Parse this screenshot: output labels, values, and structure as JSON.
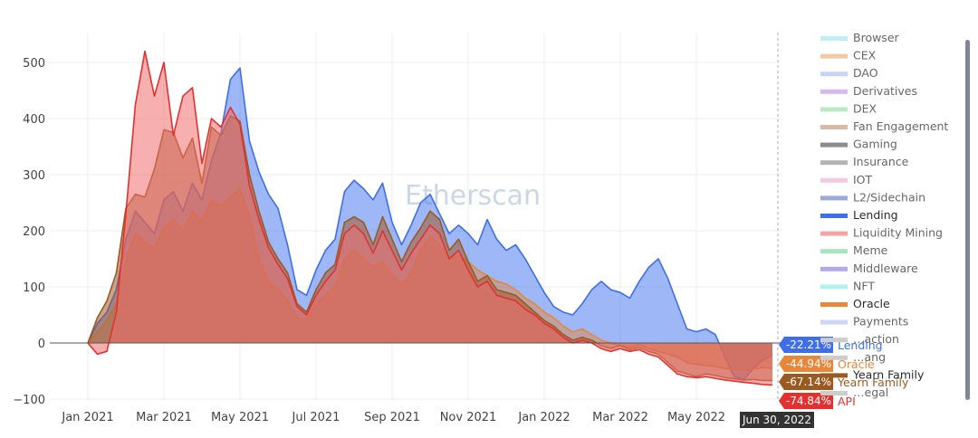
{
  "watermark": "Etherscan",
  "hover_date": "Jun 30, 2022",
  "chart_data": {
    "type": "area",
    "x_ticks": [
      "Jan 2021",
      "Mar 2021",
      "May 2021",
      "Jul 2021",
      "Sep 2021",
      "Nov 2021",
      "Jan 2022",
      "Mar 2022",
      "May 2022"
    ],
    "y_ticks": [
      "500",
      "400",
      "300",
      "200",
      "100",
      "0",
      "−100"
    ],
    "ylim": [
      -100,
      550
    ],
    "xlim_months": [
      0,
      18
    ],
    "grid": true,
    "legend_position": "right",
    "legend": [
      {
        "name": "Browser",
        "color": "#bfeff2",
        "active": false
      },
      {
        "name": "CEX",
        "color": "#f7c8a0",
        "active": false
      },
      {
        "name": "DAO",
        "color": "#c8d4f5",
        "active": false
      },
      {
        "name": "Derivatives",
        "color": "#d8b8f0",
        "active": false
      },
      {
        "name": "DEX",
        "color": "#bde8c4",
        "active": false
      },
      {
        "name": "Fan Engagement",
        "color": "#d9b9a4",
        "active": false
      },
      {
        "name": "Gaming",
        "color": "#8c8c8c",
        "active": false
      },
      {
        "name": "Insurance",
        "color": "#b4b4b4",
        "active": false
      },
      {
        "name": "IOT",
        "color": "#f4c9e0",
        "active": false
      },
      {
        "name": "L2/Sidechain",
        "color": "#9cabd6",
        "active": false
      },
      {
        "name": "Lending",
        "color": "#3f6ee8",
        "active": true
      },
      {
        "name": "Liquidity Mining",
        "color": "#f5a3a3",
        "active": false
      },
      {
        "name": "Meme",
        "color": "#a8e3c0",
        "active": false
      },
      {
        "name": "Middleware",
        "color": "#b3a8e8",
        "active": false
      },
      {
        "name": "NFT",
        "color": "#b3f0ec",
        "active": false
      },
      {
        "name": "Oracle",
        "color": "#e8873a",
        "active": true
      },
      {
        "name": "Payments",
        "color": "#cbd6f8",
        "active": false
      },
      {
        "name": "…action",
        "color": "#cccccc",
        "active": false
      },
      {
        "name": "…ang",
        "color": "#cccccc",
        "active": false
      },
      {
        "name": "Yearn Family",
        "color": "#9a5a22",
        "active": true
      },
      {
        "name": "…egal",
        "color": "#cccccc",
        "active": false
      }
    ],
    "series": [
      {
        "name": "Lending",
        "color": "#3f6ee8",
        "fill": "rgba(76,124,240,0.55)",
        "end_label": "-22.21%",
        "x": [
          0,
          0.25,
          0.5,
          0.75,
          1,
          1.25,
          1.5,
          1.75,
          2,
          2.25,
          2.5,
          2.75,
          3,
          3.25,
          3.5,
          3.75,
          4,
          4.25,
          4.5,
          4.75,
          5,
          5.25,
          5.5,
          5.75,
          6,
          6.25,
          6.5,
          6.75,
          7,
          7.25,
          7.5,
          7.75,
          8,
          8.25,
          8.5,
          8.75,
          9,
          9.25,
          9.5,
          9.75,
          10,
          10.25,
          10.5,
          10.75,
          11,
          11.25,
          11.5,
          11.75,
          12,
          12.25,
          12.5,
          12.75,
          13,
          13.25,
          13.5,
          13.75,
          14,
          14.25,
          14.5,
          14.75,
          15,
          15.25,
          15.5,
          15.75,
          16,
          16.25,
          16.5,
          16.75,
          17,
          17.25,
          17.5,
          17.75,
          18
        ],
        "y": [
          0,
          35,
          55,
          95,
          185,
          235,
          215,
          195,
          255,
          270,
          235,
          285,
          255,
          325,
          375,
          470,
          490,
          360,
          305,
          265,
          240,
          175,
          95,
          85,
          130,
          165,
          185,
          270,
          290,
          275,
          255,
          285,
          215,
          175,
          210,
          250,
          265,
          230,
          195,
          210,
          195,
          175,
          220,
          185,
          165,
          175,
          150,
          120,
          90,
          65,
          55,
          50,
          70,
          95,
          110,
          95,
          90,
          80,
          110,
          135,
          150,
          115,
          70,
          25,
          20,
          25,
          15,
          -25,
          -60,
          -65,
          -45,
          -30,
          -22.21
        ]
      },
      {
        "name": "Oracle",
        "color": "#e8873a",
        "fill": "rgba(232,135,58,0.45)",
        "end_label": "-44.94%",
        "x": [
          0,
          0.25,
          0.5,
          0.75,
          1,
          1.25,
          1.5,
          1.75,
          2,
          2.25,
          2.5,
          2.75,
          3,
          3.25,
          3.5,
          3.75,
          4,
          4.25,
          4.5,
          4.75,
          5,
          5.25,
          5.5,
          5.75,
          6,
          6.25,
          6.5,
          6.75,
          7,
          7.25,
          7.5,
          7.75,
          8,
          8.25,
          8.5,
          8.75,
          9,
          9.25,
          9.5,
          9.75,
          10,
          10.25,
          10.5,
          10.75,
          11,
          11.25,
          11.5,
          11.75,
          12,
          12.25,
          12.5,
          12.75,
          13,
          13.25,
          13.5,
          13.75,
          14,
          14.25,
          14.5,
          14.75,
          15,
          15.25,
          15.5,
          15.75,
          16,
          16.25,
          16.5,
          16.75,
          17,
          17.25,
          17.5,
          17.75,
          18
        ],
        "y": [
          0,
          20,
          40,
          70,
          150,
          195,
          180,
          170,
          205,
          220,
          200,
          235,
          215,
          255,
          245,
          260,
          275,
          225,
          150,
          110,
          95,
          75,
          45,
          40,
          70,
          85,
          100,
          150,
          165,
          150,
          135,
          145,
          120,
          105,
          125,
          165,
          190,
          175,
          150,
          155,
          145,
          130,
          120,
          110,
          105,
          95,
          80,
          70,
          55,
          45,
          30,
          20,
          25,
          15,
          5,
          0,
          -5,
          -8,
          -3,
          -10,
          -15,
          -20,
          -25,
          -35,
          -38,
          -40,
          -42,
          -45,
          -47,
          -50,
          -46,
          -44,
          -44.94
        ]
      },
      {
        "name": "Yearn Family",
        "color": "#9a5a22",
        "fill": "rgba(160,90,40,0.55)",
        "end_label": "-67.14%",
        "x": [
          0,
          0.25,
          0.5,
          0.75,
          1,
          1.25,
          1.5,
          1.75,
          2,
          2.25,
          2.5,
          2.75,
          3,
          3.25,
          3.5,
          3.75,
          4,
          4.25,
          4.5,
          4.75,
          5,
          5.25,
          5.5,
          5.75,
          6,
          6.25,
          6.5,
          6.75,
          7,
          7.25,
          7.5,
          7.75,
          8,
          8.25,
          8.5,
          8.75,
          9,
          9.25,
          9.5,
          9.75,
          10,
          10.25,
          10.5,
          10.75,
          11,
          11.25,
          11.5,
          11.75,
          12,
          12.25,
          12.5,
          12.75,
          13,
          13.25,
          13.5,
          13.75,
          14,
          14.25,
          14.5,
          14.75,
          15,
          15.25,
          15.5,
          15.75,
          16,
          16.25,
          16.5,
          16.75,
          17,
          17.25,
          17.5,
          17.75,
          18
        ],
        "y": [
          0,
          45,
          75,
          125,
          240,
          265,
          260,
          310,
          380,
          375,
          330,
          365,
          285,
          385,
          370,
          405,
          395,
          300,
          235,
          180,
          150,
          125,
          70,
          55,
          95,
          125,
          140,
          215,
          225,
          215,
          175,
          225,
          185,
          145,
          180,
          205,
          235,
          220,
          165,
          185,
          145,
          110,
          120,
          95,
          90,
          85,
          70,
          55,
          40,
          30,
          15,
          5,
          10,
          5,
          -5,
          -10,
          -5,
          -12,
          -8,
          -15,
          -20,
          -35,
          -50,
          -55,
          -60,
          -55,
          -58,
          -62,
          -64,
          -66,
          -65,
          -67,
          -67.14
        ]
      },
      {
        "name": "API",
        "color": "#e53030",
        "fill": "rgba(240,110,110,0.55)",
        "end_label": "-74.84%",
        "x": [
          0,
          0.25,
          0.5,
          0.75,
          1,
          1.25,
          1.5,
          1.75,
          2,
          2.25,
          2.5,
          2.75,
          3,
          3.25,
          3.5,
          3.75,
          4,
          4.25,
          4.5,
          4.75,
          5,
          5.25,
          5.5,
          5.75,
          6,
          6.25,
          6.5,
          6.75,
          7,
          7.25,
          7.5,
          7.75,
          8,
          8.25,
          8.5,
          8.75,
          9,
          9.25,
          9.5,
          9.75,
          10,
          10.25,
          10.5,
          10.75,
          11,
          11.25,
          11.5,
          11.75,
          12,
          12.25,
          12.5,
          12.75,
          13,
          13.25,
          13.5,
          13.75,
          14,
          14.25,
          14.5,
          14.75,
          15,
          15.25,
          15.5,
          15.75,
          16,
          16.25,
          16.5,
          16.75,
          17,
          17.25,
          17.5,
          17.75,
          18
        ],
        "y": [
          0,
          -20,
          -15,
          55,
          230,
          425,
          520,
          440,
          500,
          370,
          440,
          455,
          320,
          400,
          385,
          420,
          390,
          280,
          220,
          170,
          140,
          115,
          65,
          50,
          85,
          110,
          130,
          195,
          210,
          195,
          160,
          200,
          165,
          130,
          160,
          185,
          210,
          195,
          150,
          165,
          130,
          100,
          110,
          85,
          80,
          75,
          60,
          50,
          35,
          25,
          10,
          0,
          5,
          0,
          -10,
          -15,
          -10,
          -15,
          -12,
          -20,
          -25,
          -40,
          -55,
          -60,
          -62,
          -60,
          -63,
          -66,
          -68,
          -70,
          -72,
          -74,
          -74.84
        ]
      }
    ]
  }
}
